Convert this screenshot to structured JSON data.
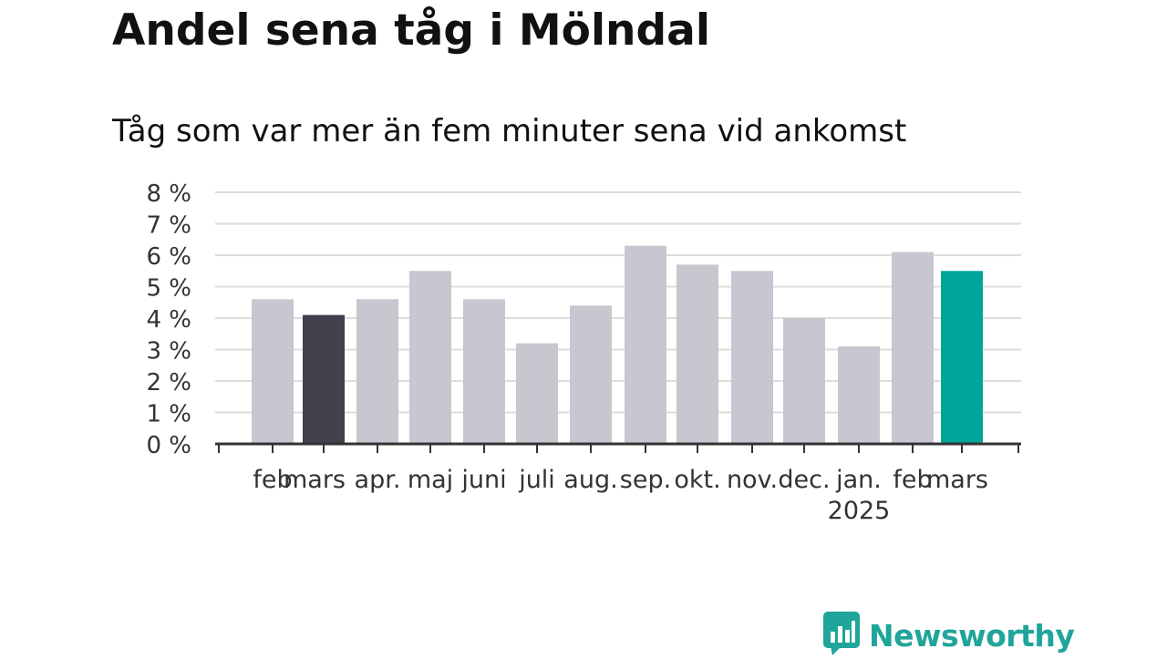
{
  "header": {
    "title": "Andel sena tåg i Mölndal",
    "subtitle": "Tåg som var mer än fem minuter sena vid ankomst"
  },
  "logo": {
    "text": "Newsworthy",
    "icon": "bar-chart-speech-bubble-icon"
  },
  "colors": {
    "bar_default": "#c8c7cf",
    "bar_highlight_prev_year": "#42404d",
    "bar_highlight_current": "#00a59a",
    "grid": "#dddddd",
    "axis": "#333333",
    "brand": "#1fa59a"
  },
  "chart_data": {
    "type": "bar",
    "title": "Andel sena tåg i Mölndal",
    "subtitle": "Tåg som var mer än fem minuter sena vid ankomst",
    "categories": [
      "feb",
      "mars",
      "apr.",
      "maj",
      "juni",
      "juli",
      "aug.",
      "sep.",
      "okt.",
      "nov.",
      "dec.",
      "jan.",
      "feb",
      "mars"
    ],
    "year_label": "2025",
    "year_label_index": 11,
    "values": [
      4.6,
      4.1,
      4.6,
      5.5,
      4.6,
      3.2,
      4.4,
      6.3,
      5.7,
      5.5,
      4.0,
      3.1,
      6.1,
      5.5
    ],
    "highlight": {
      "1": "bar_highlight_prev_year",
      "13": "bar_highlight_current"
    },
    "unit": "%",
    "yticks": [
      "0 %",
      "1 %",
      "2 %",
      "3 %",
      "4 %",
      "5 %",
      "6 %",
      "7 %",
      "8 %"
    ],
    "ylim": [
      0,
      8
    ],
    "grid": true,
    "xlabel": "",
    "ylabel": ""
  }
}
